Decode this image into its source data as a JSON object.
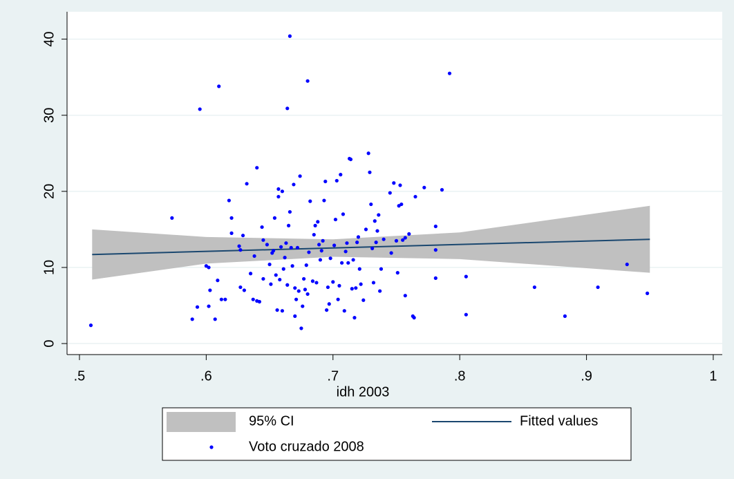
{
  "chart_data": {
    "type": "scatter",
    "x_label": "idh 2003",
    "xlim": [
      0.4902,
      1.0071
    ],
    "ylim": [
      -1.45,
      43.6
    ],
    "xticks": [
      {
        "value": 0.5,
        "label": ".5"
      },
      {
        "value": 0.6,
        "label": ".6"
      },
      {
        "value": 0.7,
        "label": ".7"
      },
      {
        "value": 0.8,
        "label": ".8"
      },
      {
        "value": 0.9,
        "label": ".9"
      },
      1
    ],
    "yticks": [
      0,
      10,
      20,
      30,
      40
    ],
    "grid": true,
    "series": [
      {
        "name": "95% CI",
        "kind": "band",
        "color": "#c0c0c0",
        "x": [
          0.51,
          0.6,
          0.7,
          0.8,
          0.95
        ],
        "upper": [
          15.0,
          14.0,
          13.7,
          14.6,
          18.1
        ],
        "lower": [
          8.4,
          10.5,
          11.4,
          11.1,
          9.3
        ]
      },
      {
        "name": "Fitted values",
        "kind": "line",
        "color": "#1a476f",
        "x": [
          0.51,
          0.95
        ],
        "values": [
          11.7,
          13.7
        ]
      },
      {
        "name": "Voto cruzado 2008",
        "kind": "points",
        "color": "#0000ff",
        "x": [
          0.509,
          0.573,
          0.595,
          0.61,
          0.666,
          0.664,
          0.68,
          0.792,
          0.932,
          0.948,
          0.909,
          0.883,
          0.859,
          0.805,
          0.805,
          0.781,
          0.781,
          0.781,
          0.786,
          0.772,
          0.589,
          0.593,
          0.6,
          0.602,
          0.603,
          0.602,
          0.607,
          0.609,
          0.612,
          0.615,
          0.618,
          0.62,
          0.62,
          0.626,
          0.627,
          0.627,
          0.629,
          0.63,
          0.632,
          0.635,
          0.637,
          0.638,
          0.64,
          0.64,
          0.642,
          0.644,
          0.645,
          0.645,
          0.648,
          0.65,
          0.651,
          0.652,
          0.653,
          0.654,
          0.655,
          0.656,
          0.657,
          0.657,
          0.658,
          0.659,
          0.66,
          0.66,
          0.661,
          0.662,
          0.663,
          0.664,
          0.665,
          0.666,
          0.667,
          0.668,
          0.669,
          0.67,
          0.67,
          0.671,
          0.672,
          0.673,
          0.674,
          0.675,
          0.676,
          0.677,
          0.678,
          0.679,
          0.68,
          0.681,
          0.682,
          0.684,
          0.685,
          0.686,
          0.687,
          0.688,
          0.689,
          0.69,
          0.691,
          0.692,
          0.693,
          0.694,
          0.695,
          0.696,
          0.697,
          0.698,
          0.7,
          0.701,
          0.702,
          0.703,
          0.704,
          0.705,
          0.706,
          0.707,
          0.708,
          0.709,
          0.71,
          0.711,
          0.712,
          0.713,
          0.714,
          0.715,
          0.716,
          0.717,
          0.718,
          0.719,
          0.72,
          0.721,
          0.722,
          0.724,
          0.726,
          0.728,
          0.729,
          0.73,
          0.731,
          0.732,
          0.733,
          0.734,
          0.735,
          0.736,
          0.737,
          0.738,
          0.74,
          0.745,
          0.746,
          0.748,
          0.75,
          0.751,
          0.752,
          0.753,
          0.754,
          0.755,
          0.757,
          0.76,
          0.763,
          0.764,
          0.765,
          0.757
        ],
        "values": [
          2.4,
          16.5,
          30.8,
          33.8,
          40.4,
          30.9,
          34.5,
          35.5,
          10.4,
          6.6,
          7.4,
          3.6,
          7.4,
          3.8,
          8.8,
          8.6,
          12.3,
          15.4,
          20.2,
          20.5,
          3.2,
          4.8,
          10.2,
          10.0,
          7.0,
          4.9,
          3.2,
          8.3,
          5.8,
          5.8,
          18.8,
          16.5,
          14.5,
          12.8,
          12.3,
          7.4,
          14.2,
          7.0,
          21.0,
          9.2,
          5.8,
          11.5,
          23.1,
          5.6,
          5.5,
          15.3,
          8.5,
          13.6,
          13.0,
          10.4,
          7.8,
          11.9,
          12.2,
          16.5,
          9.0,
          4.4,
          20.3,
          19.3,
          8.4,
          12.7,
          20.0,
          4.3,
          9.8,
          11.3,
          13.2,
          7.7,
          15.5,
          17.3,
          12.6,
          10.2,
          20.9,
          3.6,
          7.3,
          5.8,
          12.6,
          6.9,
          22.0,
          2.0,
          4.9,
          8.5,
          7.1,
          10.3,
          6.5,
          12.0,
          18.7,
          8.2,
          14.3,
          15.5,
          8.0,
          16.0,
          13.0,
          11.0,
          12.2,
          13.5,
          18.8,
          21.3,
          4.4,
          7.4,
          5.2,
          11.2,
          8.1,
          12.9,
          16.3,
          21.4,
          5.8,
          7.6,
          22.2,
          10.6,
          17.0,
          4.3,
          12.1,
          13.2,
          10.6,
          24.3,
          24.2,
          7.2,
          11.0,
          3.4,
          7.3,
          13.3,
          14.0,
          9.8,
          7.8,
          5.7,
          15.0,
          25.0,
          22.5,
          18.3,
          12.5,
          8.0,
          16.1,
          13.3,
          14.8,
          16.9,
          6.9,
          9.8,
          13.7,
          19.8,
          11.9,
          21.1,
          13.5,
          9.3,
          18.1,
          20.8,
          18.3,
          13.6,
          6.3,
          14.4,
          3.6,
          3.4,
          19.3,
          13.9
        ]
      }
    ]
  }
}
